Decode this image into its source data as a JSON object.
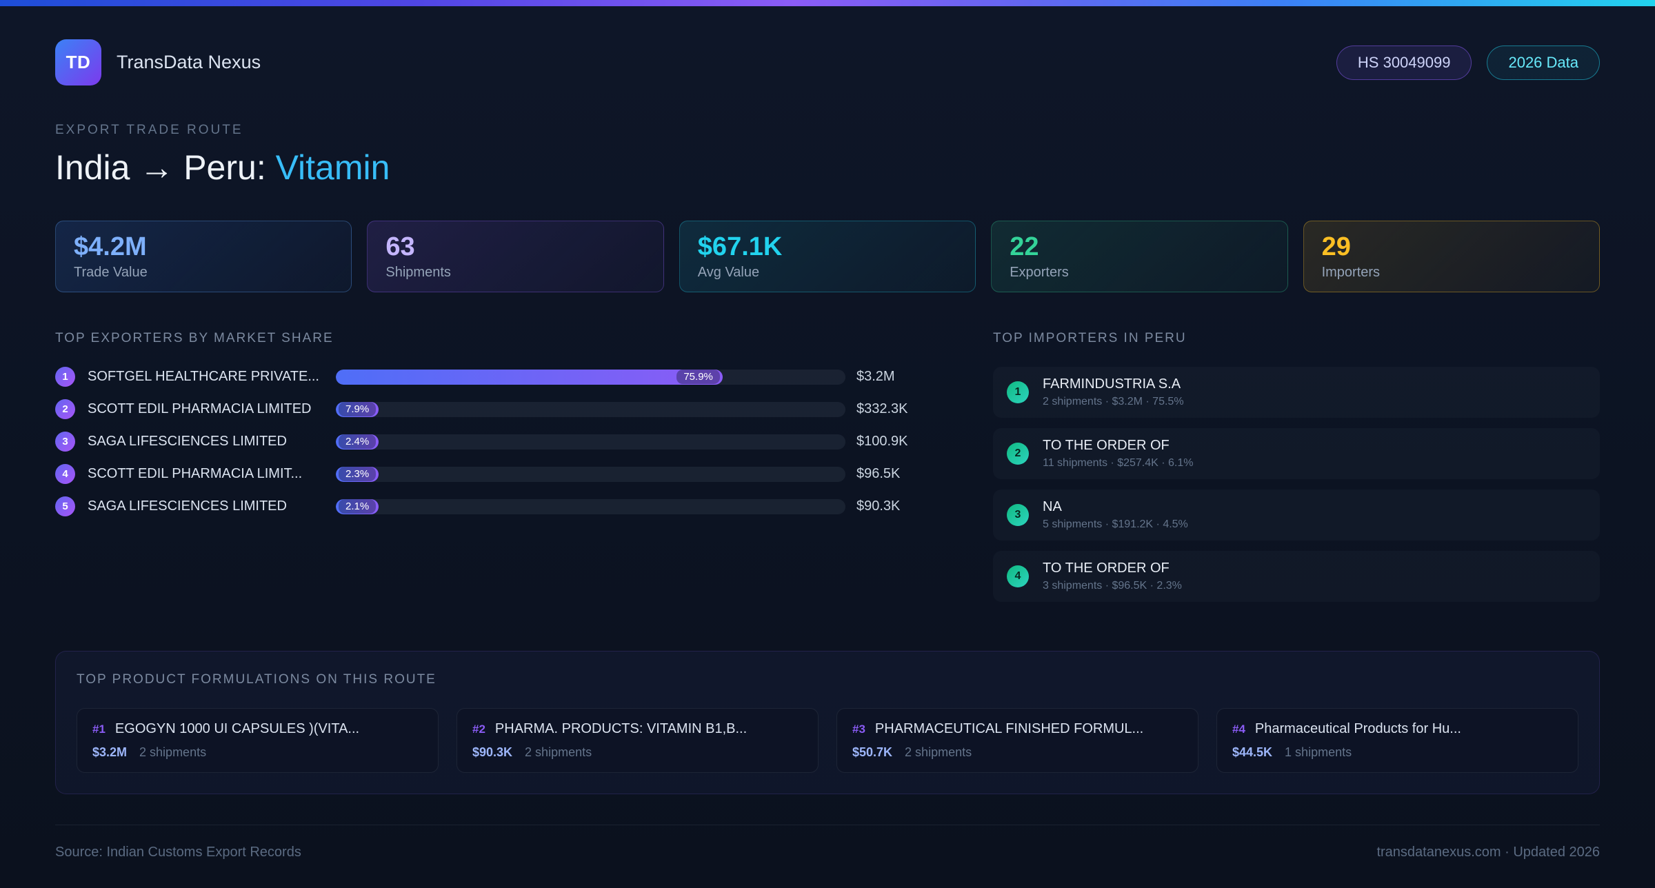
{
  "theme": {
    "title_highlight": "#38bdf8",
    "rank_badge_purple": "#8b5cf6",
    "bar_fill_start": "#4f6ef7",
    "bar_fill_end": "#8b5cf6",
    "importer_badge_green": "#10b981",
    "product_rank_color": "#8b5cf6",
    "product_value_color": "#9db6fb"
  },
  "header": {
    "logo_text": "TD",
    "app_name": "TransData Nexus",
    "hs_badge": "HS 30049099",
    "year_badge": "2026 Data"
  },
  "hero": {
    "eyebrow": "EXPORT TRADE ROUTE",
    "title_prefix": "India → Peru: ",
    "title_highlight": "Vitamin"
  },
  "stats": [
    {
      "value": "$4.2M",
      "label": "Trade Value",
      "accent": "#7eb0fb"
    },
    {
      "value": "63",
      "label": "Shipments",
      "accent": "#c4b5fd"
    },
    {
      "value": "$67.1K",
      "label": "Avg Value",
      "accent": "#22d3ee"
    },
    {
      "value": "22",
      "label": "Exporters",
      "accent": "#34d399"
    },
    {
      "value": "29",
      "label": "Importers",
      "accent": "#fbbf24"
    }
  ],
  "exporters": {
    "heading": "TOP EXPORTERS BY MARKET SHARE",
    "rows": [
      {
        "rank": "1",
        "name": "SOFTGEL HEALTHCARE PRIVATE...",
        "share": "75.9%",
        "share_pct": 75.9,
        "value": "$3.2M"
      },
      {
        "rank": "2",
        "name": "SCOTT EDIL PHARMACIA LIMITED",
        "share": "7.9%",
        "share_pct": 7.9,
        "value": "$332.3K"
      },
      {
        "rank": "3",
        "name": "SAGA LIFESCIENCES LIMITED",
        "share": "2.4%",
        "share_pct": 2.4,
        "value": "$100.9K"
      },
      {
        "rank": "4",
        "name": "SCOTT EDIL PHARMACIA LIMIT...",
        "share": "2.3%",
        "share_pct": 2.3,
        "value": "$96.5K"
      },
      {
        "rank": "5",
        "name": "SAGA LIFESCIENCES LIMITED",
        "share": "2.1%",
        "share_pct": 2.1,
        "value": "$90.3K"
      }
    ]
  },
  "importers": {
    "heading": "TOP IMPORTERS IN PERU",
    "rows": [
      {
        "rank": "1",
        "name": "FARMINDUSTRIA S.A",
        "meta": "2 shipments · $3.2M · 75.5%"
      },
      {
        "rank": "2",
        "name": "TO THE ORDER OF",
        "meta": "11 shipments · $257.4K · 6.1%"
      },
      {
        "rank": "3",
        "name": "NA",
        "meta": "5 shipments · $191.2K · 4.5%"
      },
      {
        "rank": "4",
        "name": "TO THE ORDER OF",
        "meta": "3 shipments · $96.5K · 2.3%"
      }
    ]
  },
  "products": {
    "heading": "TOP PRODUCT FORMULATIONS ON THIS ROUTE",
    "cards": [
      {
        "rank": "#1",
        "name": "EGOGYN 1000 UI CAPSULES )(VITA...",
        "value": "$3.2M",
        "shipments": "2 shipments"
      },
      {
        "rank": "#2",
        "name": "PHARMA. PRODUCTS: VITAMIN B1,B...",
        "value": "$90.3K",
        "shipments": "2 shipments"
      },
      {
        "rank": "#3",
        "name": "PHARMACEUTICAL FINISHED FORMUL...",
        "value": "$50.7K",
        "shipments": "2 shipments"
      },
      {
        "rank": "#4",
        "name": "Pharmaceutical Products for Hu...",
        "value": "$44.5K",
        "shipments": "1 shipments"
      }
    ]
  },
  "footer": {
    "source": "Source: Indian Customs Export Records",
    "site": "transdatanexus.com · Updated 2026"
  }
}
